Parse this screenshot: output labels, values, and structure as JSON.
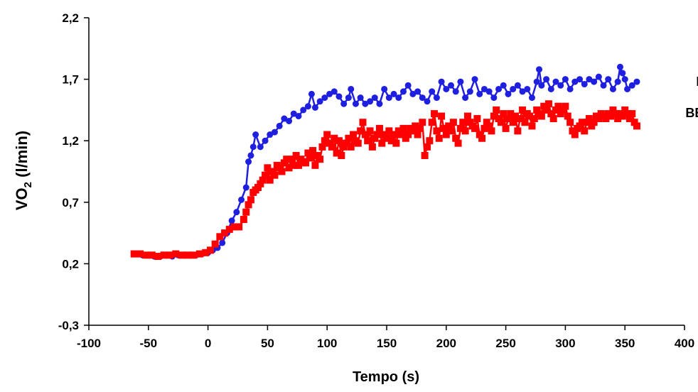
{
  "chart_data": {
    "type": "line",
    "title": "",
    "xlabel": "Tempo (s)",
    "ylabel_main": "VO",
    "ylabel_sub": "2",
    "ylabel_rest": " (l/min)",
    "xlim": [
      -100,
      400
    ],
    "ylim": [
      -0.3,
      2.2
    ],
    "x_ticks": [
      {
        "value": -100,
        "label": "-100"
      },
      {
        "value": -50,
        "label": "-50"
      },
      {
        "value": 0,
        "label": "0"
      },
      {
        "value": 50,
        "label": "50"
      },
      {
        "value": 100,
        "label": "100"
      },
      {
        "value": 150,
        "label": "150"
      },
      {
        "value": 200,
        "label": "200"
      },
      {
        "value": 250,
        "label": "250"
      },
      {
        "value": 300,
        "label": "300"
      },
      {
        "value": 350,
        "label": "350"
      },
      {
        "value": 400,
        "label": "400"
      }
    ],
    "y_ticks": [
      {
        "value": -0.3,
        "label": "-0,3"
      },
      {
        "value": 0.2,
        "label": "0,2"
      },
      {
        "value": 0.7,
        "label": "0,7"
      },
      {
        "value": 1.2,
        "label": "1,2"
      },
      {
        "value": 1.7,
        "label": "1,7"
      },
      {
        "value": 2.2,
        "label": "2,2"
      }
    ],
    "grid": false,
    "series": [
      {
        "name": "ER",
        "color": "#1f1fe0",
        "marker": "circle",
        "x": [
          -60,
          -55,
          -50,
          -45,
          -40,
          -35,
          -30,
          -25,
          -20,
          -15,
          -10,
          -5,
          0,
          4,
          8,
          12,
          16,
          20,
          24,
          28,
          32,
          34,
          36,
          38,
          40,
          44,
          48,
          52,
          56,
          60,
          64,
          68,
          72,
          76,
          80,
          84,
          87,
          90,
          94,
          98,
          102,
          106,
          110,
          114,
          118,
          120,
          124,
          128,
          132,
          136,
          140,
          144,
          148,
          152,
          156,
          160,
          164,
          168,
          172,
          176,
          180,
          184,
          188,
          192,
          196,
          200,
          204,
          208,
          212,
          216,
          220,
          224,
          228,
          232,
          236,
          240,
          244,
          248,
          252,
          256,
          260,
          264,
          268,
          272,
          276,
          278,
          280,
          284,
          288,
          292,
          296,
          300,
          304,
          308,
          312,
          316,
          320,
          324,
          328,
          332,
          336,
          340,
          344,
          346,
          348,
          350,
          352,
          356,
          360
        ],
        "y": [
          0.28,
          0.27,
          0.27,
          0.26,
          0.26,
          0.27,
          0.26,
          0.27,
          0.27,
          0.27,
          0.27,
          0.28,
          0.29,
          0.31,
          0.33,
          0.37,
          0.45,
          0.55,
          0.62,
          0.72,
          0.82,
          1.03,
          1.08,
          1.15,
          1.25,
          1.15,
          1.2,
          1.25,
          1.27,
          1.32,
          1.38,
          1.36,
          1.42,
          1.4,
          1.45,
          1.48,
          1.58,
          1.47,
          1.52,
          1.55,
          1.58,
          1.6,
          1.56,
          1.5,
          1.55,
          1.62,
          1.5,
          1.55,
          1.5,
          1.52,
          1.55,
          1.5,
          1.62,
          1.55,
          1.58,
          1.55,
          1.6,
          1.65,
          1.58,
          1.6,
          1.55,
          1.52,
          1.6,
          1.55,
          1.68,
          1.62,
          1.65,
          1.6,
          1.68,
          1.55,
          1.6,
          1.7,
          1.58,
          1.62,
          1.6,
          1.55,
          1.62,
          1.65,
          1.58,
          1.62,
          1.65,
          1.6,
          1.62,
          1.55,
          1.68,
          1.78,
          1.65,
          1.7,
          1.62,
          1.68,
          1.65,
          1.7,
          1.62,
          1.68,
          1.7,
          1.66,
          1.7,
          1.68,
          1.72,
          1.65,
          1.7,
          1.62,
          1.68,
          1.8,
          1.75,
          1.7,
          1.62,
          1.65,
          1.68
        ]
      },
      {
        "name": "BE",
        "color": "#ff0000",
        "marker": "square",
        "x": [
          -62,
          -57,
          -52,
          -47,
          -42,
          -37,
          -32,
          -27,
          -22,
          -17,
          -12,
          -7,
          -2,
          2,
          6,
          10,
          14,
          18,
          22,
          26,
          30,
          32,
          34,
          36,
          38,
          40,
          42,
          44,
          46,
          48,
          50,
          52,
          54,
          56,
          58,
          60,
          62,
          64,
          66,
          68,
          70,
          72,
          74,
          76,
          78,
          80,
          82,
          84,
          86,
          88,
          90,
          92,
          94,
          96,
          98,
          100,
          102,
          104,
          106,
          108,
          110,
          112,
          114,
          116,
          118,
          120,
          122,
          124,
          126,
          128,
          130,
          132,
          134,
          136,
          138,
          140,
          142,
          144,
          146,
          148,
          150,
          152,
          154,
          156,
          158,
          160,
          162,
          164,
          166,
          168,
          170,
          172,
          174,
          176,
          178,
          180,
          182,
          184,
          186,
          188,
          190,
          192,
          194,
          196,
          198,
          200,
          202,
          204,
          206,
          208,
          210,
          212,
          214,
          216,
          218,
          220,
          222,
          224,
          226,
          228,
          230,
          232,
          234,
          236,
          238,
          240,
          242,
          244,
          246,
          248,
          250,
          252,
          254,
          256,
          258,
          260,
          262,
          264,
          266,
          268,
          270,
          272,
          274,
          276,
          278,
          280,
          282,
          284,
          286,
          288,
          290,
          292,
          294,
          296,
          298,
          300,
          302,
          304,
          306,
          308,
          310,
          312,
          314,
          316,
          318,
          320,
          322,
          324,
          326,
          328,
          330,
          332,
          334,
          336,
          338,
          340,
          342,
          344,
          346,
          348,
          350,
          352,
          354,
          356,
          358,
          360
        ],
        "y": [
          0.28,
          0.28,
          0.27,
          0.27,
          0.26,
          0.27,
          0.27,
          0.28,
          0.27,
          0.27,
          0.27,
          0.28,
          0.29,
          0.31,
          0.36,
          0.42,
          0.45,
          0.48,
          0.5,
          0.5,
          0.56,
          0.62,
          0.68,
          0.72,
          0.78,
          0.8,
          0.82,
          0.85,
          0.88,
          0.92,
          0.98,
          0.88,
          0.95,
          0.92,
          1.0,
          0.98,
          0.95,
          1.02,
          1.05,
          0.98,
          1.05,
          1.0,
          1.08,
          1.0,
          1.05,
          1.03,
          1.02,
          1.1,
          1.06,
          1.12,
          1.0,
          1.08,
          1.05,
          1.15,
          1.2,
          1.25,
          1.18,
          1.15,
          1.22,
          1.1,
          1.2,
          1.08,
          1.15,
          1.18,
          1.22,
          1.15,
          1.25,
          1.2,
          1.18,
          1.28,
          1.35,
          1.25,
          1.2,
          1.28,
          1.15,
          1.22,
          1.25,
          1.3,
          1.18,
          1.25,
          1.22,
          1.28,
          1.2,
          1.25,
          1.18,
          1.28,
          1.25,
          1.3,
          1.22,
          1.25,
          1.3,
          1.28,
          1.32,
          1.25,
          1.3,
          1.35,
          1.08,
          1.15,
          1.2,
          1.35,
          1.42,
          1.28,
          1.22,
          1.4,
          1.3,
          1.25,
          1.32,
          1.28,
          1.35,
          1.22,
          1.18,
          1.3,
          1.35,
          1.28,
          1.4,
          1.35,
          1.32,
          1.3,
          1.38,
          1.25,
          1.22,
          1.3,
          1.35,
          1.32,
          1.28,
          1.4,
          1.45,
          1.38,
          1.35,
          1.42,
          1.3,
          1.38,
          1.42,
          1.35,
          1.4,
          1.28,
          1.38,
          1.45,
          1.35,
          1.42,
          1.4,
          1.32,
          1.38,
          1.45,
          1.42,
          1.4,
          1.48,
          1.45,
          1.5,
          1.42,
          1.38,
          1.45,
          1.48,
          1.42,
          1.45,
          1.48,
          1.4,
          1.35,
          1.28,
          1.25,
          1.3,
          1.32,
          1.35,
          1.28,
          1.35,
          1.38,
          1.32,
          1.35,
          1.4,
          1.38,
          1.42,
          1.4,
          1.38,
          1.42,
          1.4,
          1.45,
          1.42,
          1.38,
          1.42,
          1.4,
          1.45,
          1.42,
          1.38,
          1.42,
          1.35,
          1.32
        ]
      }
    ],
    "series_labels": [
      {
        "text": "ER",
        "anchor_x": 365,
        "anchor_y": 1.68
      },
      {
        "text": "BE",
        "anchor_x": 365,
        "anchor_y": 1.3
      }
    ]
  }
}
